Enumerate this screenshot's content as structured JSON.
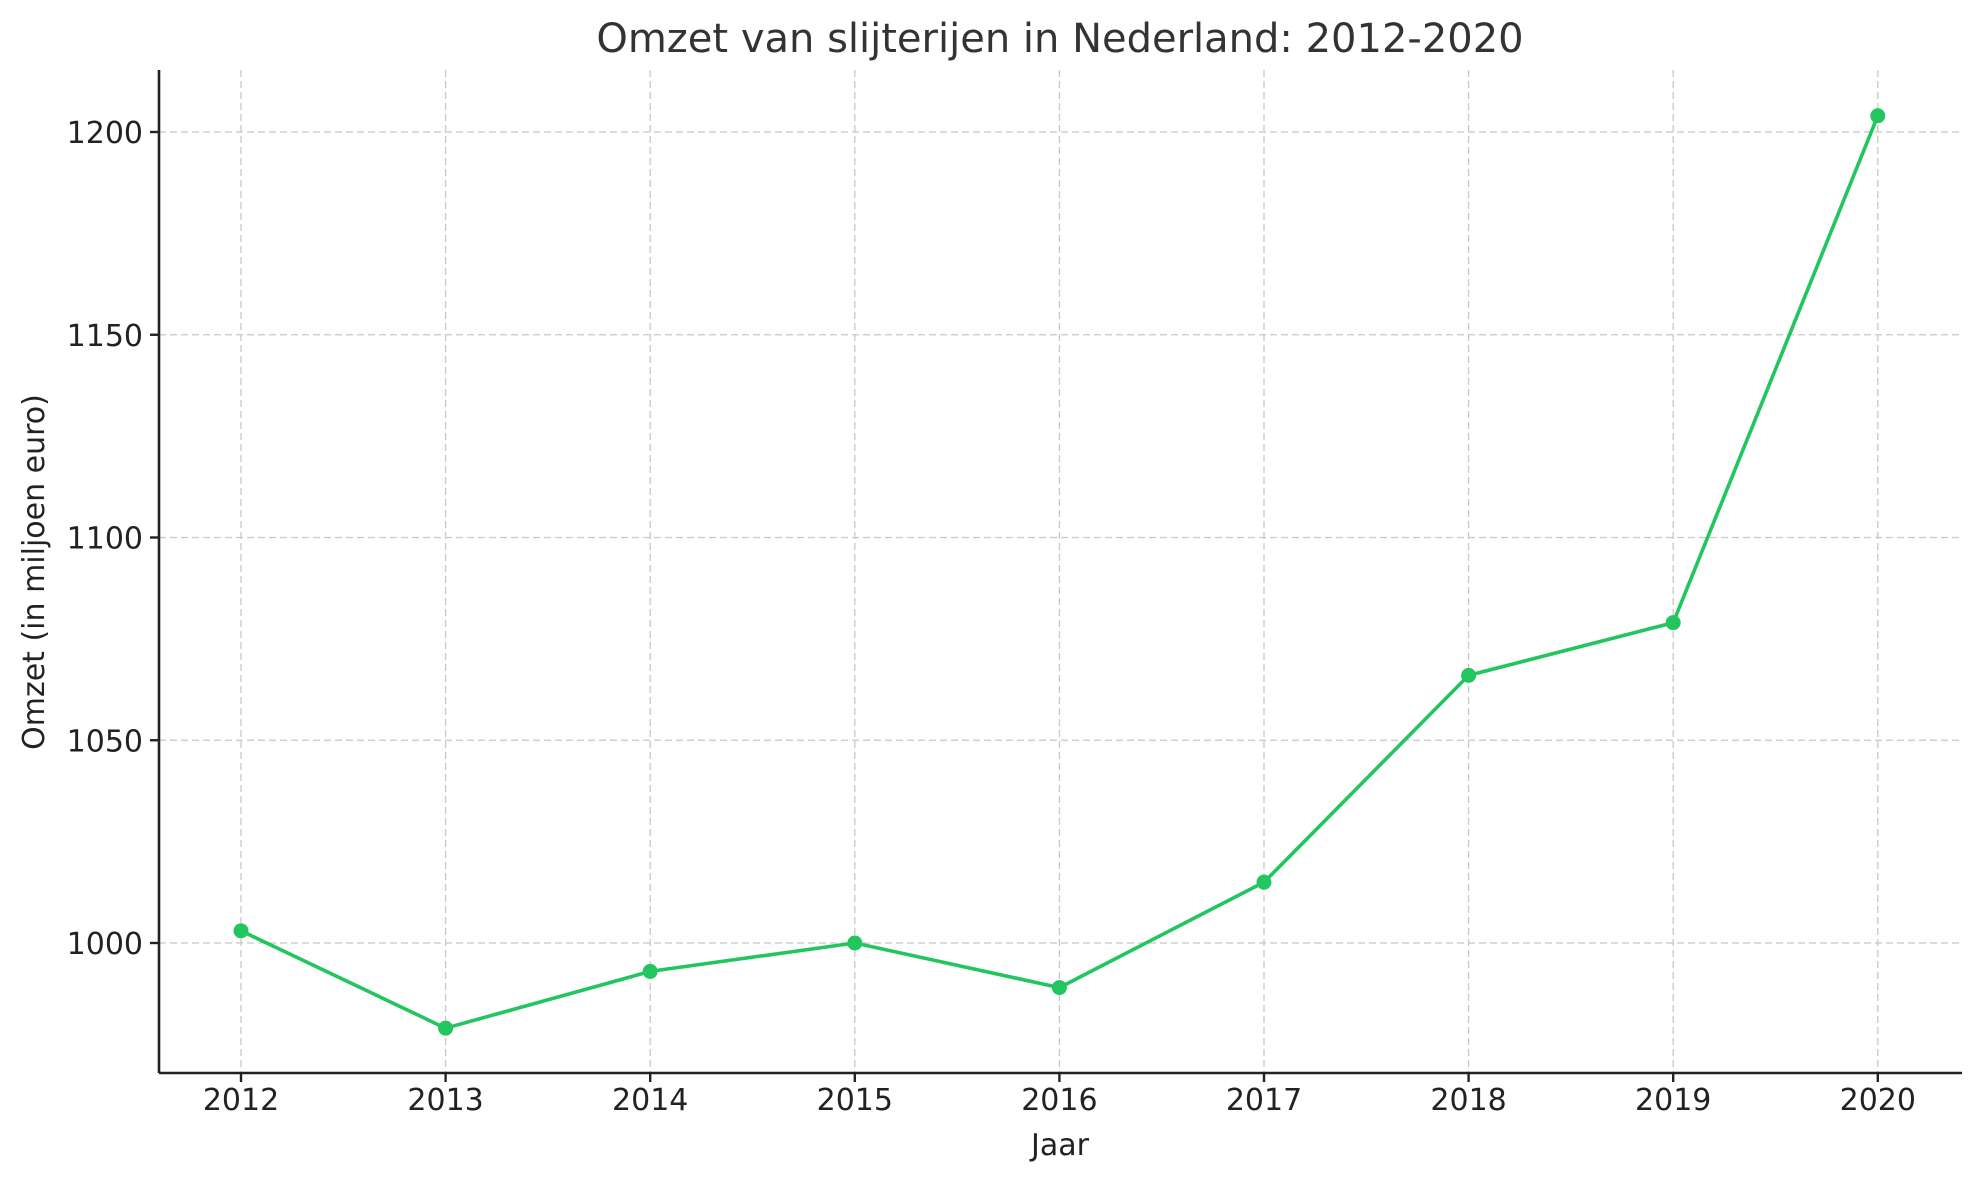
{
  "chart": {
    "title": "Omzet van slijterijen in Nederland: 2012-2020",
    "xlabel": "Jaar",
    "ylabel": "Omzet (in miljoen euro)",
    "line_color": "#22c55e",
    "y_ticks": [
      "1000",
      "1050",
      "1100",
      "1150",
      "1200"
    ],
    "x_ticks": [
      "2012",
      "2013",
      "2014",
      "2015",
      "2016",
      "2017",
      "2018",
      "2019",
      "2020"
    ]
  },
  "chart_data": {
    "type": "line",
    "title": "Omzet van slijterijen in Nederland: 2012-2020",
    "xlabel": "Jaar",
    "ylabel": "Omzet (in miljoen euro)",
    "categories": [
      "2012",
      "2013",
      "2014",
      "2015",
      "2016",
      "2017",
      "2018",
      "2019",
      "2020"
    ],
    "series": [
      {
        "name": "Omzet",
        "color": "#22c55e",
        "marker": "circle",
        "values": [
          1003,
          979,
          993,
          1000,
          989,
          1015,
          1066,
          1079,
          1204
        ]
      }
    ],
    "y_ticks": [
      1000,
      1050,
      1100,
      1150,
      1200
    ],
    "ylim": [
      968,
      1215
    ],
    "grid": true,
    "grid_style": "dashed",
    "legend": "none"
  }
}
